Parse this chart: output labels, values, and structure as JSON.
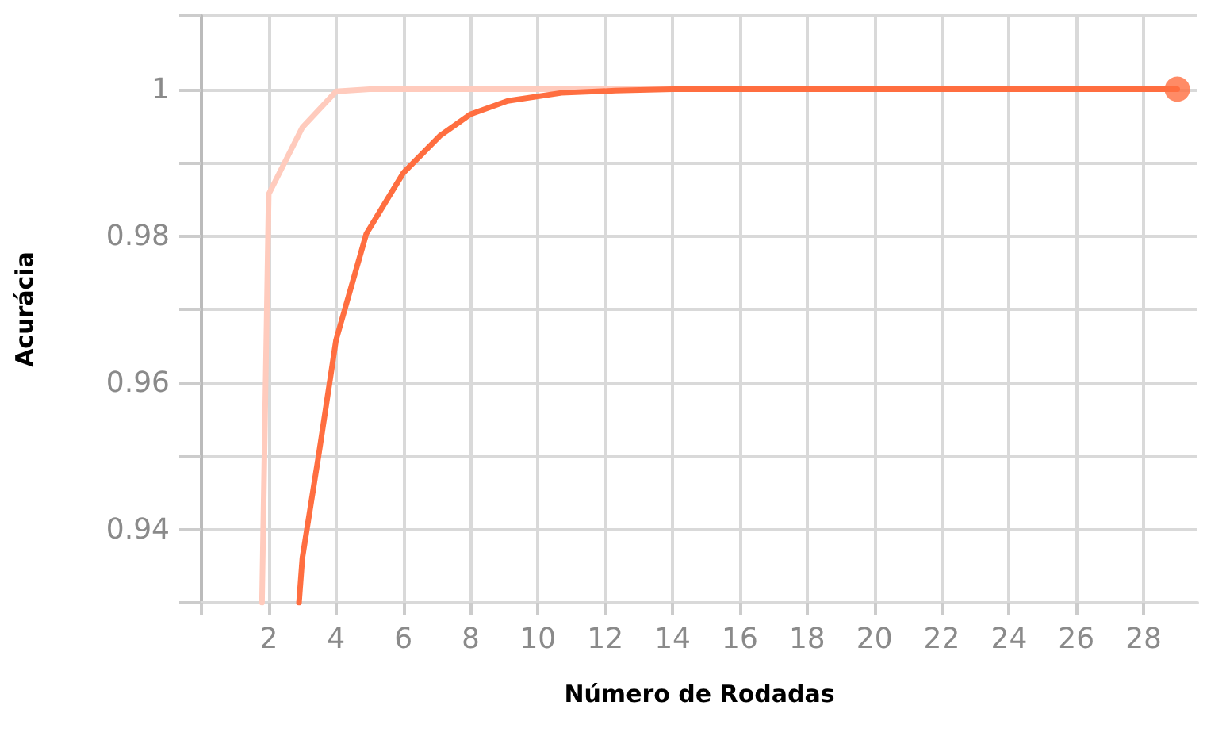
{
  "chart_data": {
    "type": "line",
    "xlabel": "Número de Rodadas",
    "ylabel": "Acurácia",
    "xlim": [
      0,
      29.6
    ],
    "ylim": [
      0.93,
      1.01
    ],
    "xticks": [
      {
        "value": 0,
        "label": null
      },
      2,
      4,
      6,
      8,
      10,
      12,
      14,
      16,
      18,
      20,
      22,
      24,
      26,
      28
    ],
    "yticks": [
      {
        "value": 0.93,
        "label": null
      },
      0.94,
      {
        "value": 0.95,
        "label": null
      },
      0.96,
      {
        "value": 0.97,
        "label": null
      },
      0.98,
      {
        "value": 0.99,
        "label": null
      },
      1,
      {
        "value": 1.01,
        "label": null
      }
    ],
    "grid": true,
    "marker": "none",
    "line_style": "solid",
    "series": [
      {
        "color": "#ffcbbd",
        "x": [
          1.8,
          2,
          3,
          4,
          5,
          7,
          10,
          14,
          18,
          22,
          26
        ],
        "values": [
          0.93,
          0.9857,
          0.9948,
          0.9997,
          1,
          1,
          1,
          1,
          1,
          1,
          1
        ]
      },
      {
        "color": "#ff6e40",
        "x": [
          2.9,
          3,
          3.5,
          4,
          4.9,
          6,
          7.1,
          8,
          9.1,
          10.7,
          12.3,
          14,
          16,
          20,
          24,
          29
        ],
        "values": [
          0.93,
          0.9361,
          0.9506,
          0.9658,
          0.9803,
          0.9886,
          0.9937,
          0.9966,
          0.9984,
          0.9995,
          0.9998,
          1,
          1,
          1,
          1,
          1
        ]
      },
      {
        "type": "scatter",
        "marker": "circle",
        "color": "#ff6e40",
        "x": [
          29
        ],
        "values": [
          1
        ]
      }
    ]
  }
}
